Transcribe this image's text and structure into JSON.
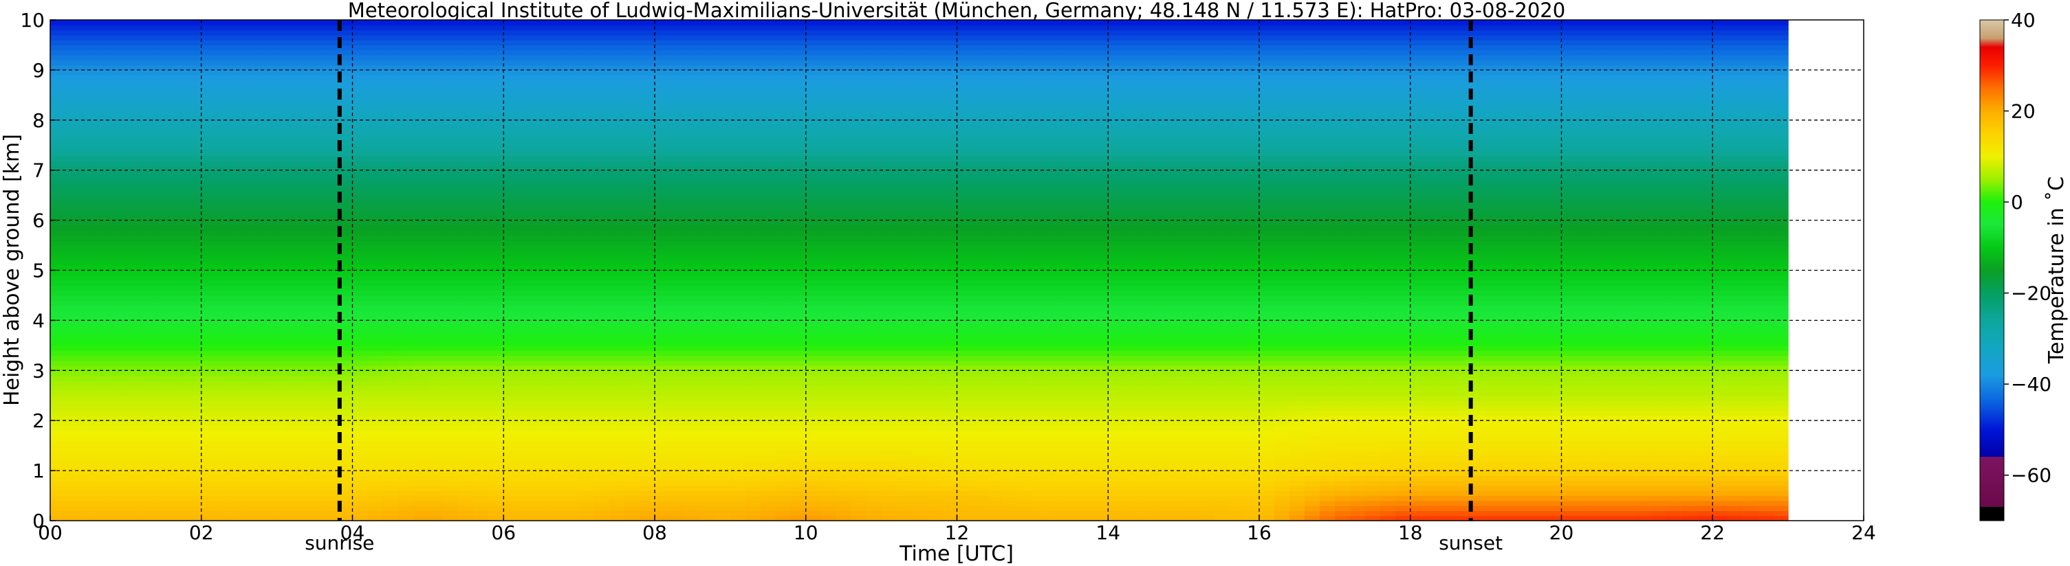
{
  "chart_data": {
    "type": "heatmap",
    "title": "Meteorological Institute of Ludwig-Maximilians-Universität (München, Germany; 48.148 N / 11.573 E):    HatPro: 03-08-2020",
    "xlabel": "Time [UTC]",
    "ylabel": "Height above ground [km]",
    "xlim": [
      0,
      24
    ],
    "ylim": [
      0,
      10
    ],
    "x_ticks": [
      0,
      2,
      4,
      6,
      8,
      10,
      12,
      14,
      16,
      18,
      20,
      22,
      24
    ],
    "x_tick_labels": [
      "00",
      "02",
      "04",
      "06",
      "08",
      "10",
      "12",
      "14",
      "16",
      "18",
      "20",
      "22",
      "24"
    ],
    "y_ticks": [
      0,
      1,
      2,
      3,
      4,
      5,
      6,
      7,
      8,
      9,
      10
    ],
    "y_tick_labels": [
      "0",
      "1",
      "2",
      "3",
      "4",
      "5",
      "6",
      "7",
      "8",
      "9",
      "10"
    ],
    "grid": true,
    "data_end_time": 23.0,
    "colorbar": {
      "label": "Temperature in ˚C",
      "range": [
        -70,
        40
      ],
      "ticks": [
        -60,
        -40,
        -20,
        0,
        20,
        40
      ],
      "tick_labels": [
        "−60",
        "−40",
        "−20",
        "0",
        "20",
        "40"
      ],
      "stops": [
        {
          "value": -70,
          "color": "#000000"
        },
        {
          "value": -67,
          "color": "#000000"
        },
        {
          "value": -67,
          "color": "#6a0a4a"
        },
        {
          "value": -56,
          "color": "#7c1461"
        },
        {
          "value": -56,
          "color": "#0000a8"
        },
        {
          "value": -50,
          "color": "#0015d8"
        },
        {
          "value": -44,
          "color": "#0a62e0"
        },
        {
          "value": -38,
          "color": "#1b9be0"
        },
        {
          "value": -32,
          "color": "#13a6c2"
        },
        {
          "value": -26,
          "color": "#0ea79c"
        },
        {
          "value": -21,
          "color": "#05a06a"
        },
        {
          "value": -15,
          "color": "#0aa024"
        },
        {
          "value": -10,
          "color": "#05c915"
        },
        {
          "value": -5,
          "color": "#1ae83a"
        },
        {
          "value": 0,
          "color": "#1ef00c"
        },
        {
          "value": 5,
          "color": "#9cf000"
        },
        {
          "value": 10,
          "color": "#f0f000"
        },
        {
          "value": 15,
          "color": "#fcd200"
        },
        {
          "value": 20,
          "color": "#fcae00"
        },
        {
          "value": 25,
          "color": "#fc7000"
        },
        {
          "value": 30,
          "color": "#fc1e00"
        },
        {
          "value": 34,
          "color": "#e80000"
        },
        {
          "value": 36,
          "color": "#c8a070"
        },
        {
          "value": 40,
          "color": "#d8c8a8"
        }
      ]
    },
    "temperature_profile": {
      "heights_km": [
        0,
        0.5,
        1,
        1.5,
        2,
        2.5,
        3,
        3.5,
        4,
        4.5,
        5,
        5.5,
        6,
        6.5,
        7,
        7.5,
        8,
        8.5,
        9,
        9.5,
        10
      ],
      "times_utc": [
        0,
        1,
        2,
        3,
        4,
        5,
        6,
        7,
        8,
        9,
        10,
        11,
        12,
        13,
        14,
        15,
        16,
        17,
        18,
        19,
        20,
        21,
        22,
        23
      ],
      "temperature_c": [
        [
          19,
          19,
          19,
          19,
          19,
          21,
          19,
          19,
          21,
          20,
          22,
          20,
          19,
          19,
          19,
          19,
          18,
          26,
          29,
          29,
          29,
          29,
          30,
          29
        ],
        [
          16,
          16,
          16,
          16,
          16,
          17,
          16,
          16,
          17,
          17,
          18,
          17,
          17,
          16,
          16,
          16,
          16,
          20,
          21,
          21,
          21,
          21,
          21,
          21
        ],
        [
          13,
          13,
          13,
          13,
          13,
          13,
          13,
          13,
          13,
          13,
          14,
          14,
          13,
          13,
          13,
          13,
          13,
          14,
          15,
          15,
          15,
          15,
          15,
          15
        ],
        [
          11,
          11,
          11,
          11,
          11,
          11,
          11,
          11,
          11,
          11,
          11,
          11,
          11,
          11,
          11,
          11,
          11,
          12,
          12,
          12,
          12,
          12,
          12,
          12
        ],
        [
          9,
          9,
          9,
          9,
          9,
          9,
          9,
          9,
          9,
          9,
          9,
          9,
          9,
          9,
          9,
          9,
          9,
          10,
          10,
          10,
          10,
          10,
          10,
          10
        ],
        [
          7,
          7,
          7,
          7,
          7,
          7,
          7,
          7,
          7,
          7,
          7,
          7,
          7,
          7,
          7,
          7,
          7,
          7,
          7,
          7,
          7,
          7,
          7,
          7
        ],
        [
          4,
          4,
          4,
          4,
          4,
          5,
          5,
          5,
          5,
          5,
          5,
          5,
          5,
          5,
          5,
          5,
          5,
          5,
          5,
          5,
          5,
          5,
          5,
          5
        ],
        [
          0,
          0,
          0,
          0,
          0,
          0,
          0,
          0,
          0,
          0,
          0,
          0,
          0,
          0,
          0,
          0,
          0,
          0,
          0,
          0,
          0,
          0,
          0,
          0
        ],
        [
          -4,
          -4,
          -4,
          -4,
          -4,
          -4,
          -4,
          -4,
          -4,
          -4,
          -4,
          -4,
          -4,
          -4,
          -4,
          -4,
          -4,
          -4,
          -4,
          -4,
          -4,
          -4,
          -4,
          -4
        ],
        [
          -7,
          -7,
          -7,
          -7,
          -7,
          -7,
          -7,
          -7,
          -7,
          -7,
          -7,
          -7,
          -7,
          -7,
          -7,
          -7,
          -7,
          -7,
          -7,
          -7,
          -7,
          -7,
          -7,
          -7
        ],
        [
          -10,
          -10,
          -10,
          -10,
          -10,
          -10,
          -10,
          -10,
          -10,
          -10,
          -10,
          -10,
          -10,
          -10,
          -10,
          -10,
          -10,
          -10,
          -10,
          -10,
          -10,
          -10,
          -10,
          -10
        ],
        [
          -13,
          -13,
          -13,
          -13,
          -13,
          -13,
          -13,
          -13,
          -13,
          -13,
          -13,
          -13,
          -13,
          -13,
          -13,
          -13,
          -13,
          -13,
          -13,
          -13,
          -13,
          -13,
          -13,
          -13
        ],
        [
          -16,
          -16,
          -16,
          -16,
          -16,
          -16,
          -16,
          -16,
          -16,
          -16,
          -16,
          -16,
          -16,
          -16,
          -16,
          -16,
          -16,
          -16,
          -16,
          -16,
          -16,
          -16,
          -16,
          -16
        ],
        [
          -19,
          -19,
          -19,
          -19,
          -19,
          -19,
          -19,
          -19,
          -19,
          -19,
          -19,
          -19,
          -19,
          -19,
          -19,
          -19,
          -19,
          -19,
          -19,
          -19,
          -19,
          -19,
          -19,
          -19
        ],
        [
          -22,
          -22,
          -22,
          -22,
          -22,
          -22,
          -22,
          -22,
          -22,
          -22,
          -22,
          -22,
          -22,
          -22,
          -22,
          -22,
          -22,
          -22,
          -22,
          -22,
          -22,
          -22,
          -22,
          -22
        ],
        [
          -27,
          -27,
          -27,
          -27,
          -27,
          -27,
          -27,
          -27,
          -27,
          -27,
          -27,
          -27,
          -27,
          -27,
          -27,
          -27,
          -27,
          -27,
          -27,
          -27,
          -27,
          -27,
          -27,
          -27
        ],
        [
          -31,
          -31,
          -31,
          -31,
          -31,
          -31,
          -31,
          -31,
          -31,
          -31,
          -31,
          -31,
          -31,
          -31,
          -31,
          -31,
          -31,
          -31,
          -31,
          -31,
          -31,
          -31,
          -31,
          -31
        ],
        [
          -35,
          -35,
          -35,
          -35,
          -35,
          -35,
          -35,
          -35,
          -35,
          -35,
          -35,
          -35,
          -35,
          -35,
          -35,
          -35,
          -35,
          -35,
          -35,
          -35,
          -35,
          -35,
          -35,
          -35
        ],
        [
          -39,
          -39,
          -39,
          -39,
          -39,
          -39,
          -39,
          -39,
          -39,
          -39,
          -39,
          -39,
          -39,
          -39,
          -39,
          -39,
          -39,
          -39,
          -39,
          -39,
          -39,
          -39,
          -39,
          -39
        ],
        [
          -44,
          -44,
          -44,
          -44,
          -44,
          -44,
          -44,
          -44,
          -44,
          -44,
          -44,
          -44,
          -44,
          -44,
          -44,
          -44,
          -44,
          -44,
          -44,
          -44,
          -44,
          -44,
          -44,
          -44
        ],
        [
          -50,
          -50,
          -50,
          -50,
          -50,
          -50,
          -50,
          -50,
          -50,
          -50,
          -50,
          -50,
          -50,
          -50,
          -50,
          -50,
          -50,
          -50,
          -50,
          -50,
          -50,
          -50,
          -50,
          -50
        ]
      ]
    },
    "annotations": [
      {
        "label": "sunrise",
        "time_utc": 3.83
      },
      {
        "label": "sunset",
        "time_utc": 18.8
      }
    ]
  }
}
